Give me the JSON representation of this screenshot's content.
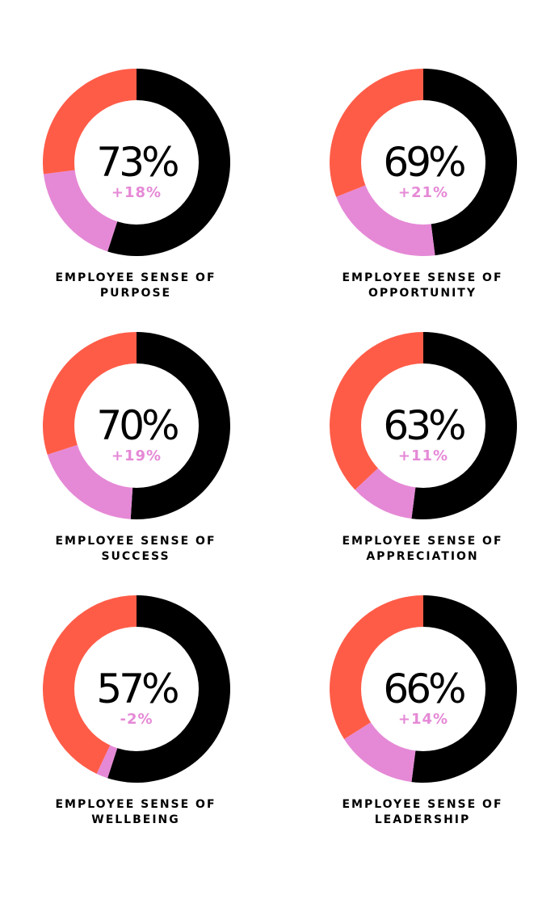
{
  "colors": {
    "positive": "#000000",
    "negative": "#ff5c48",
    "neutral": "#e589d6",
    "hole": "#ffffff"
  },
  "chart_data": [
    {
      "type": "pie",
      "style": "donut",
      "value_label": "73%",
      "change_label": "+18%",
      "label_line1": "EMPLOYEE SENSE OF",
      "label_line2": "PURPOSE",
      "slices": [
        {
          "value": 55
        },
        {
          "value": 18
        },
        {
          "value": 27
        }
      ]
    },
    {
      "type": "pie",
      "style": "donut",
      "value_label": "69%",
      "change_label": "+21%",
      "label_line1": "EMPLOYEE SENSE OF",
      "label_line2": "OPPORTUNITY",
      "slices": [
        {
          "value": 48
        },
        {
          "value": 21
        },
        {
          "value": 31
        }
      ]
    },
    {
      "type": "pie",
      "style": "donut",
      "value_label": "70%",
      "change_label": "+19%",
      "label_line1": "EMPLOYEE SENSE OF",
      "label_line2": "SUCCESS",
      "slices": [
        {
          "value": 51
        },
        {
          "value": 19
        },
        {
          "value": 30
        }
      ]
    },
    {
      "type": "pie",
      "style": "donut",
      "value_label": "63%",
      "change_label": "+11%",
      "label_line1": "EMPLOYEE SENSE OF",
      "label_line2": "APPRECIATION",
      "slices": [
        {
          "value": 52
        },
        {
          "value": 11
        },
        {
          "value": 37
        }
      ]
    },
    {
      "type": "pie",
      "style": "donut",
      "value_label": "57%",
      "change_label": "-2%",
      "label_line1": "EMPLOYEE SENSE OF",
      "label_line2": "WELLBEING",
      "slices": [
        {
          "value": 55
        },
        {
          "value": 2
        },
        {
          "value": 43
        }
      ]
    },
    {
      "type": "pie",
      "style": "donut",
      "value_label": "66%",
      "change_label": "+14%",
      "label_line1": "EMPLOYEE SENSE OF",
      "label_line2": "LEADERSHIP",
      "slices": [
        {
          "value": 52
        },
        {
          "value": 14
        },
        {
          "value": 34
        }
      ]
    }
  ]
}
